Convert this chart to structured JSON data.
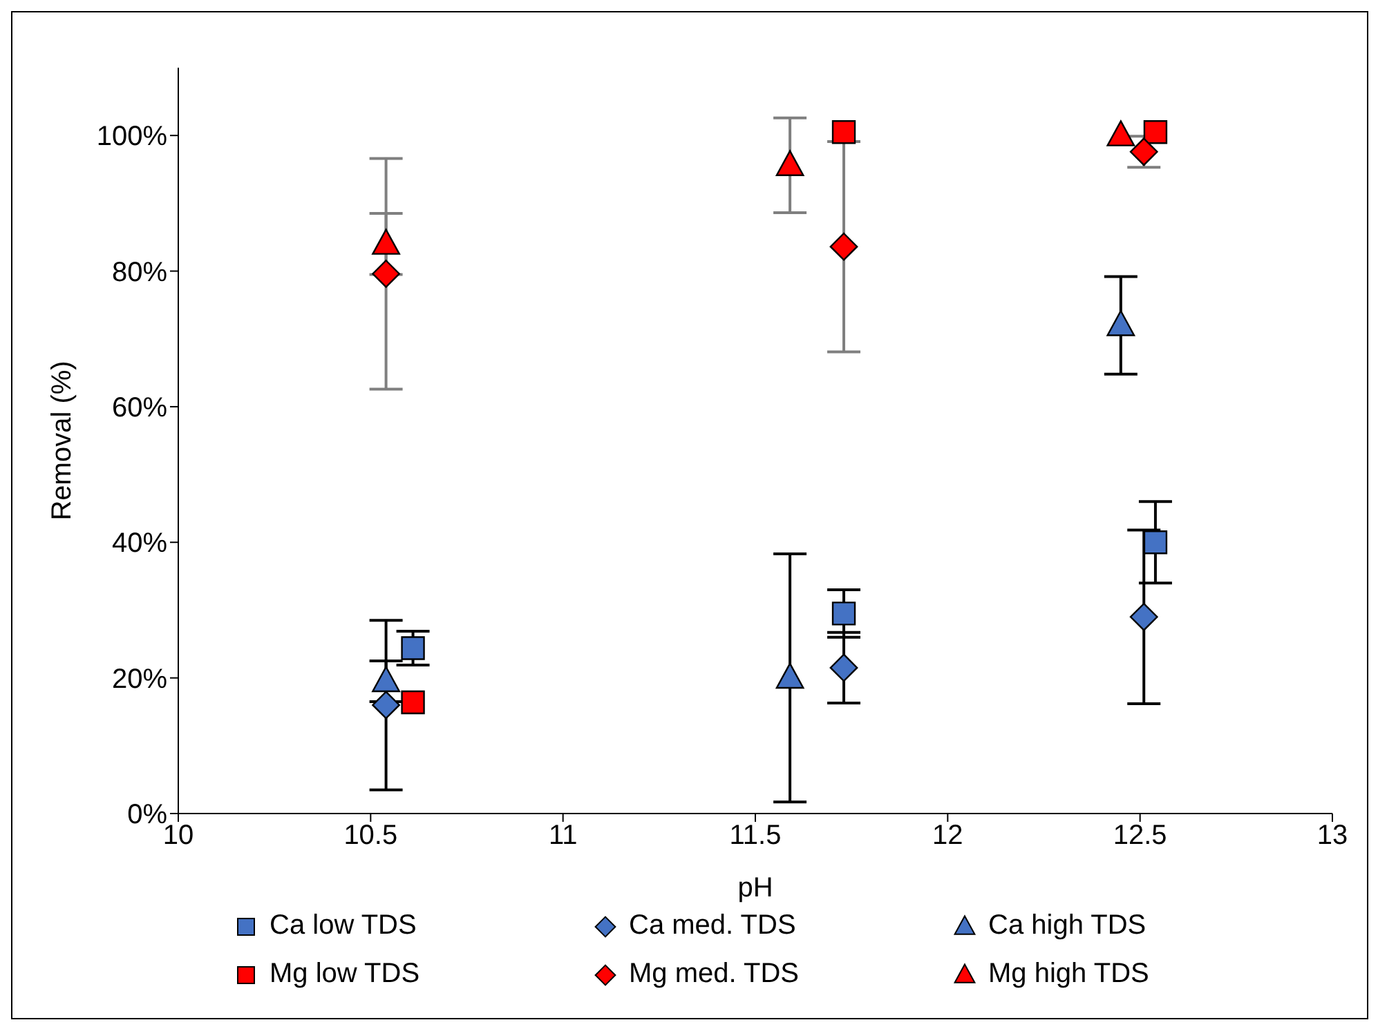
{
  "chart_data": {
    "type": "scatter",
    "xlabel": "pH",
    "ylabel": "Removal (%)",
    "xlim": [
      10,
      13
    ],
    "xticks": [
      10,
      10.5,
      11,
      11.5,
      12,
      12.5,
      13
    ],
    "ylim": [
      0,
      110
    ],
    "yticks": [
      {
        "value": 0,
        "label": "0%"
      },
      {
        "value": 20,
        "label": "20%"
      },
      {
        "value": 40,
        "label": "40%"
      },
      {
        "value": 60,
        "label": "60%"
      },
      {
        "value": 80,
        "label": "80%"
      },
      {
        "value": 100,
        "label": "100%"
      }
    ],
    "grid": false,
    "legend": "bottom",
    "series": [
      {
        "name": "Ca low TDS",
        "color": "#4472c4",
        "marker": "square",
        "x": [
          10.61,
          11.73,
          12.54
        ],
        "values": [
          24.4,
          29.5,
          40
        ],
        "errors": [
          2.5,
          3.5,
          6
        ]
      },
      {
        "name": "Ca med. TDS",
        "color": "#4472c4",
        "marker": "diamond",
        "x": [
          10.54,
          11.73,
          12.51
        ],
        "values": [
          16,
          21.5,
          29
        ],
        "errors": [
          12.5,
          5.2,
          12.8
        ]
      },
      {
        "name": "Ca high TDS",
        "color": "#4472c4",
        "marker": "triangle",
        "x": [
          10.54,
          11.59,
          12.45
        ],
        "values": [
          19.5,
          20,
          72
        ],
        "errors": [
          3,
          18.3,
          7.2
        ]
      },
      {
        "name": "Mg low TDS",
        "color": "#ff0000",
        "marker": "square",
        "x": [
          10.61,
          11.73,
          12.54
        ],
        "values": [
          16.4,
          100.5,
          100.5
        ],
        "errors": [
          null,
          null,
          null
        ]
      },
      {
        "name": "Mg med. TDS",
        "color": "#ff0000",
        "marker": "diamond",
        "x": [
          10.54,
          11.73,
          12.51
        ],
        "values": [
          79.6,
          83.6,
          97.6
        ],
        "errors": [
          17,
          15.5,
          2.3
        ]
      },
      {
        "name": "Mg high TDS",
        "color": "#ff0000",
        "marker": "triangle",
        "x": [
          10.54,
          11.59,
          12.45
        ],
        "values": [
          84,
          95.6,
          100
        ],
        "errors": [
          4.5,
          7,
          null
        ]
      }
    ]
  }
}
